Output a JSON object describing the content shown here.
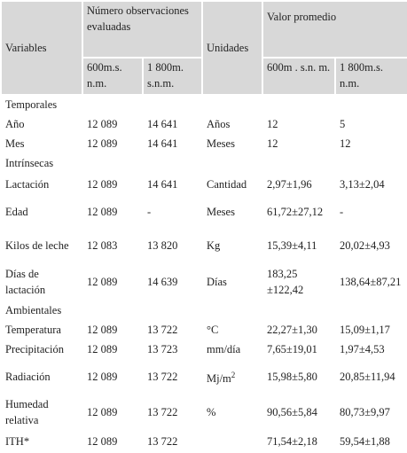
{
  "table": {
    "header": {
      "variables": "Variables",
      "observations": "Número observaciones evaluadas",
      "units": "Unidades",
      "mean": "Valor promedio",
      "sub": [
        "600m.s. n.m.",
        "1 800m. s.n.m.",
        "600m . s.n. m.",
        "1 800m.s. n.m."
      ]
    },
    "rows": [
      {
        "section": "Temporales"
      },
      {
        "cells": [
          "Año",
          "12 089",
          "14 641",
          "Años",
          "12",
          "5"
        ]
      },
      {
        "cells": [
          "Mes",
          "12 089",
          "14 641",
          "Meses",
          "12",
          "12"
        ]
      },
      {
        "section": "Intrínsecas"
      },
      {
        "cells": [
          "Lactación",
          "12 089",
          "14 641",
          "Cantidad",
          "2,97±1,96",
          "3,13±2,04"
        ]
      },
      {
        "cells": [
          "Edad",
          "12 089",
          "-",
          "Meses",
          "61,72±27,12",
          "-"
        ]
      },
      {
        "cells": [
          "Kilos de leche",
          "12 083",
          "13 820",
          "Kg",
          "15,39±4,11",
          "20,02±4,93"
        ]
      },
      {
        "cells": [
          "Días de lactación",
          "12 089",
          "14 639",
          "Días",
          "183,25 ±122,42",
          "138,64±87,21"
        ]
      },
      {
        "section": "Ambientales"
      },
      {
        "cells": [
          "Temperatura",
          "12 089",
          "13 722",
          "°C",
          "22,27±1,30",
          "15,09±1,17"
        ]
      },
      {
        "cells": [
          "Precipitación",
          "12 089",
          "13 723",
          "mm/día",
          "7,65±19,01",
          "1,97±4,53"
        ]
      },
      {
        "cells": [
          "Radiación",
          "12 089",
          "13 722",
          [
            "Mj/m",
            "2"
          ],
          "15,98±5,80",
          "20,85±11,94"
        ]
      },
      {
        "cells": [
          "Humedad relativa",
          "12 089",
          "13 722",
          "%",
          "90,56±5,84",
          "80,73±9,97"
        ]
      },
      {
        "cells": [
          "ITH*",
          "12 089",
          "13 722",
          "",
          "71,54±2,18",
          "59,54±1,88"
        ]
      }
    ]
  }
}
